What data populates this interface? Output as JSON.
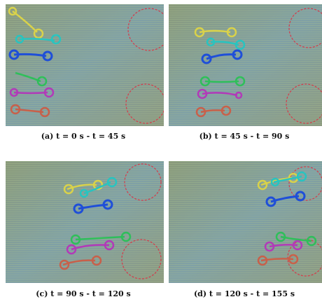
{
  "figure": {
    "panels": [
      {
        "id": "a",
        "caption": "(a) t = 0 s - t = 45 s"
      },
      {
        "id": "b",
        "caption": "(b) t = 45 s - t = 90 s"
      },
      {
        "id": "c",
        "caption": "(c) t = 90 s - t = 120 s"
      },
      {
        "id": "d",
        "caption": "(d) t = 120 s - t = 155 s"
      }
    ],
    "colors": {
      "yellow": "#d9d24a",
      "cyan": "#28c4c0",
      "blue": "#1f4fd8",
      "green": "#2fbf5a",
      "magenta": "#b23ab8",
      "red": "#c8604a",
      "target_circle": "#d63a4a"
    }
  }
}
